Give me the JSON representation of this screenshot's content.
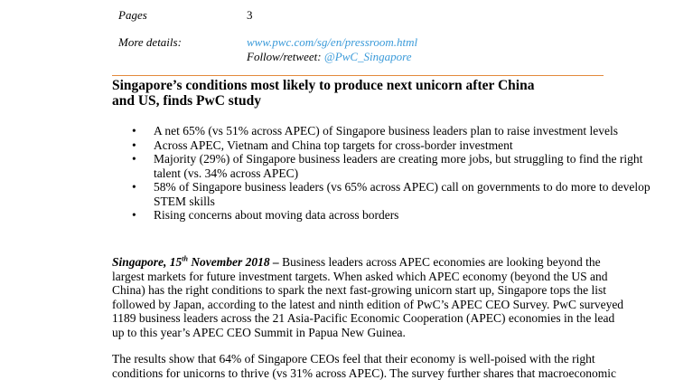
{
  "meta": {
    "pages_label": "Pages",
    "pages_value": "3",
    "details_label": "More details:",
    "url": "www.pwc.com/sg/en/pressroom.html",
    "follow_prefix": "Follow/retweet: ",
    "handle": "@PwC_Singapore"
  },
  "headline": {
    "line1": "Singapore’s conditions most likely to produce next unicorn after China",
    "line2": "and US, finds PwC study"
  },
  "bullets": [
    {
      "text": "A net 65% (vs 51% across APEC) of Singapore business leaders plan to raise investment levels"
    },
    {
      "text": "Across APEC, Vietnam and China top targets for cross-border investment"
    },
    {
      "text": "Majority (29%) of Singapore business leaders are creating more jobs, but struggling to find the right talent (vs. 34% across APEC)"
    },
    {
      "text": "58% of Singapore business leaders (vs 65% across APEC) call on governments to do more to develop STEM skills"
    },
    {
      "text": "Rising concerns about moving data across borders"
    }
  ],
  "body": {
    "dateline_city": "Singapore, 15",
    "dateline_sup": "th",
    "dateline_rest": " November 2018 –",
    "para1": " Business leaders across APEC economies are looking beyond the largest markets for future investment targets. When asked which APEC economy (beyond the US and China) has the right conditions to spark the next fast-growing unicorn start up, Singapore tops the list followed by Japan, according to the latest and ninth edition of PwC’s APEC CEO Survey. PwC surveyed 1189 business leaders across the 21 Asia-Pacific Economic Cooperation (APEC) economies in the lead up to this year’s APEC CEO Summit in Papua New Guinea.",
    "para2": "The results show that 64% of Singapore CEOs feel that their economy is well-poised with the right conditions for unicorns to thrive (vs 31% across APEC). The survey further shares that macroeconomic"
  },
  "colors": {
    "link": "#3a9ad9",
    "rule": "#e38a3c"
  }
}
